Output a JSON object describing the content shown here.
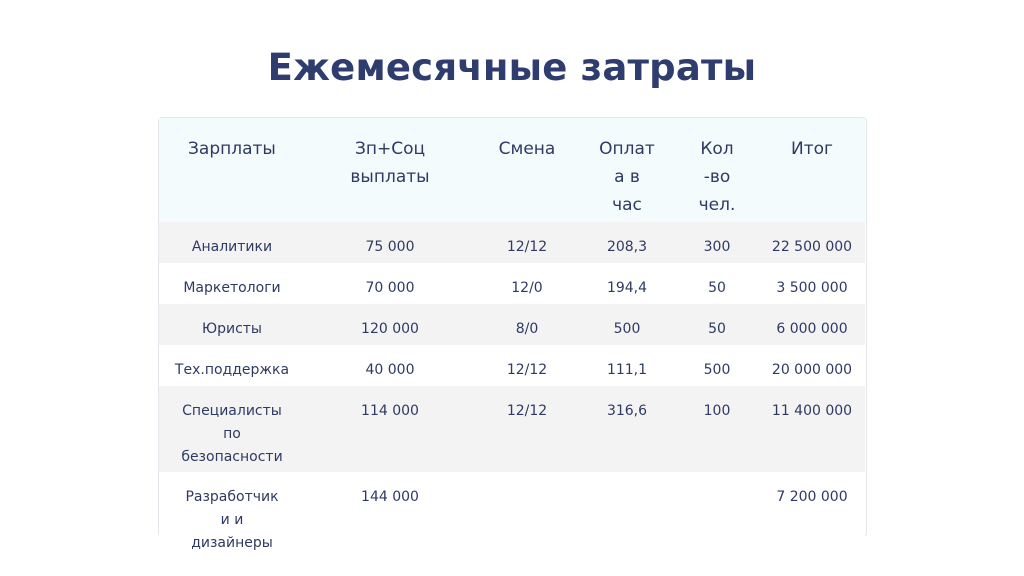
{
  "title": "Ежемесячные затраты",
  "table": {
    "headers": [
      "Зарплаты",
      "Зп+Соц\nвыплаты",
      "Смена",
      "Оплат\nа в\nчас",
      "Кол\n-во\nчел.",
      "Итог"
    ],
    "rows": [
      [
        "Аналитики",
        "75 000",
        "12/12",
        "208,3",
        "300",
        "22 500 000"
      ],
      [
        "Маркетологи",
        "70 000",
        "12/0",
        "194,4",
        "50",
        "3 500 000"
      ],
      [
        "Юристы",
        "120 000",
        "8/0",
        "500",
        "50",
        "6 000 000"
      ],
      [
        "Тех.поддержка",
        "40 000",
        "12/12",
        "111,1",
        "500",
        "20 000 000"
      ],
      [
        "Специалисты\nпо\nбезопасности",
        "114 000",
        "12/12",
        "316,6",
        "100",
        "11 400 000"
      ],
      [
        "Разработчик\nи и\nдизайнеры",
        "144 000",
        "",
        "",
        "",
        "7 200 000"
      ]
    ]
  },
  "colors": {
    "title": "#2e3c6e",
    "text": "#2f3a63",
    "header_bg": "#f4fbfd",
    "row_grey": "#f3f3f3",
    "border": "#e3e6ea"
  }
}
